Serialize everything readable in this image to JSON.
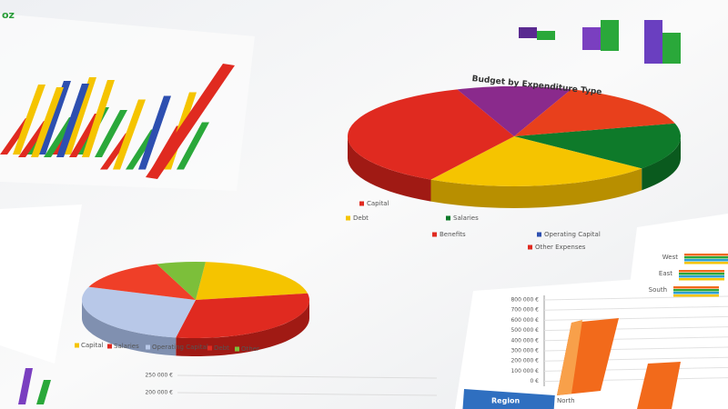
{
  "logo": "oz",
  "pie_chart": {
    "title": "Budget by Expenditure Type",
    "legend": [
      "Capital",
      "Debt",
      "Salaries",
      "Benefits",
      "Operating Capital",
      "Other Expenses"
    ]
  },
  "small_pie_chart": {
    "legend": [
      "Capital",
      "Salaries",
      "Operating Capital",
      "Debt",
      "Other"
    ]
  },
  "bar_chart": {
    "yticks": [
      "800 000 €",
      "700 000 €",
      "600 000 €",
      "500 000 €",
      "400 000 €",
      "300 000 €",
      "200 000 €",
      "100 000 €",
      "0 €"
    ],
    "header": "Region",
    "category": "North"
  },
  "side_chart": {
    "categories": [
      "West",
      "East",
      "South"
    ]
  },
  "bottom_chart": {
    "yticks": [
      "250 000 €",
      "200 000 €"
    ]
  }
}
